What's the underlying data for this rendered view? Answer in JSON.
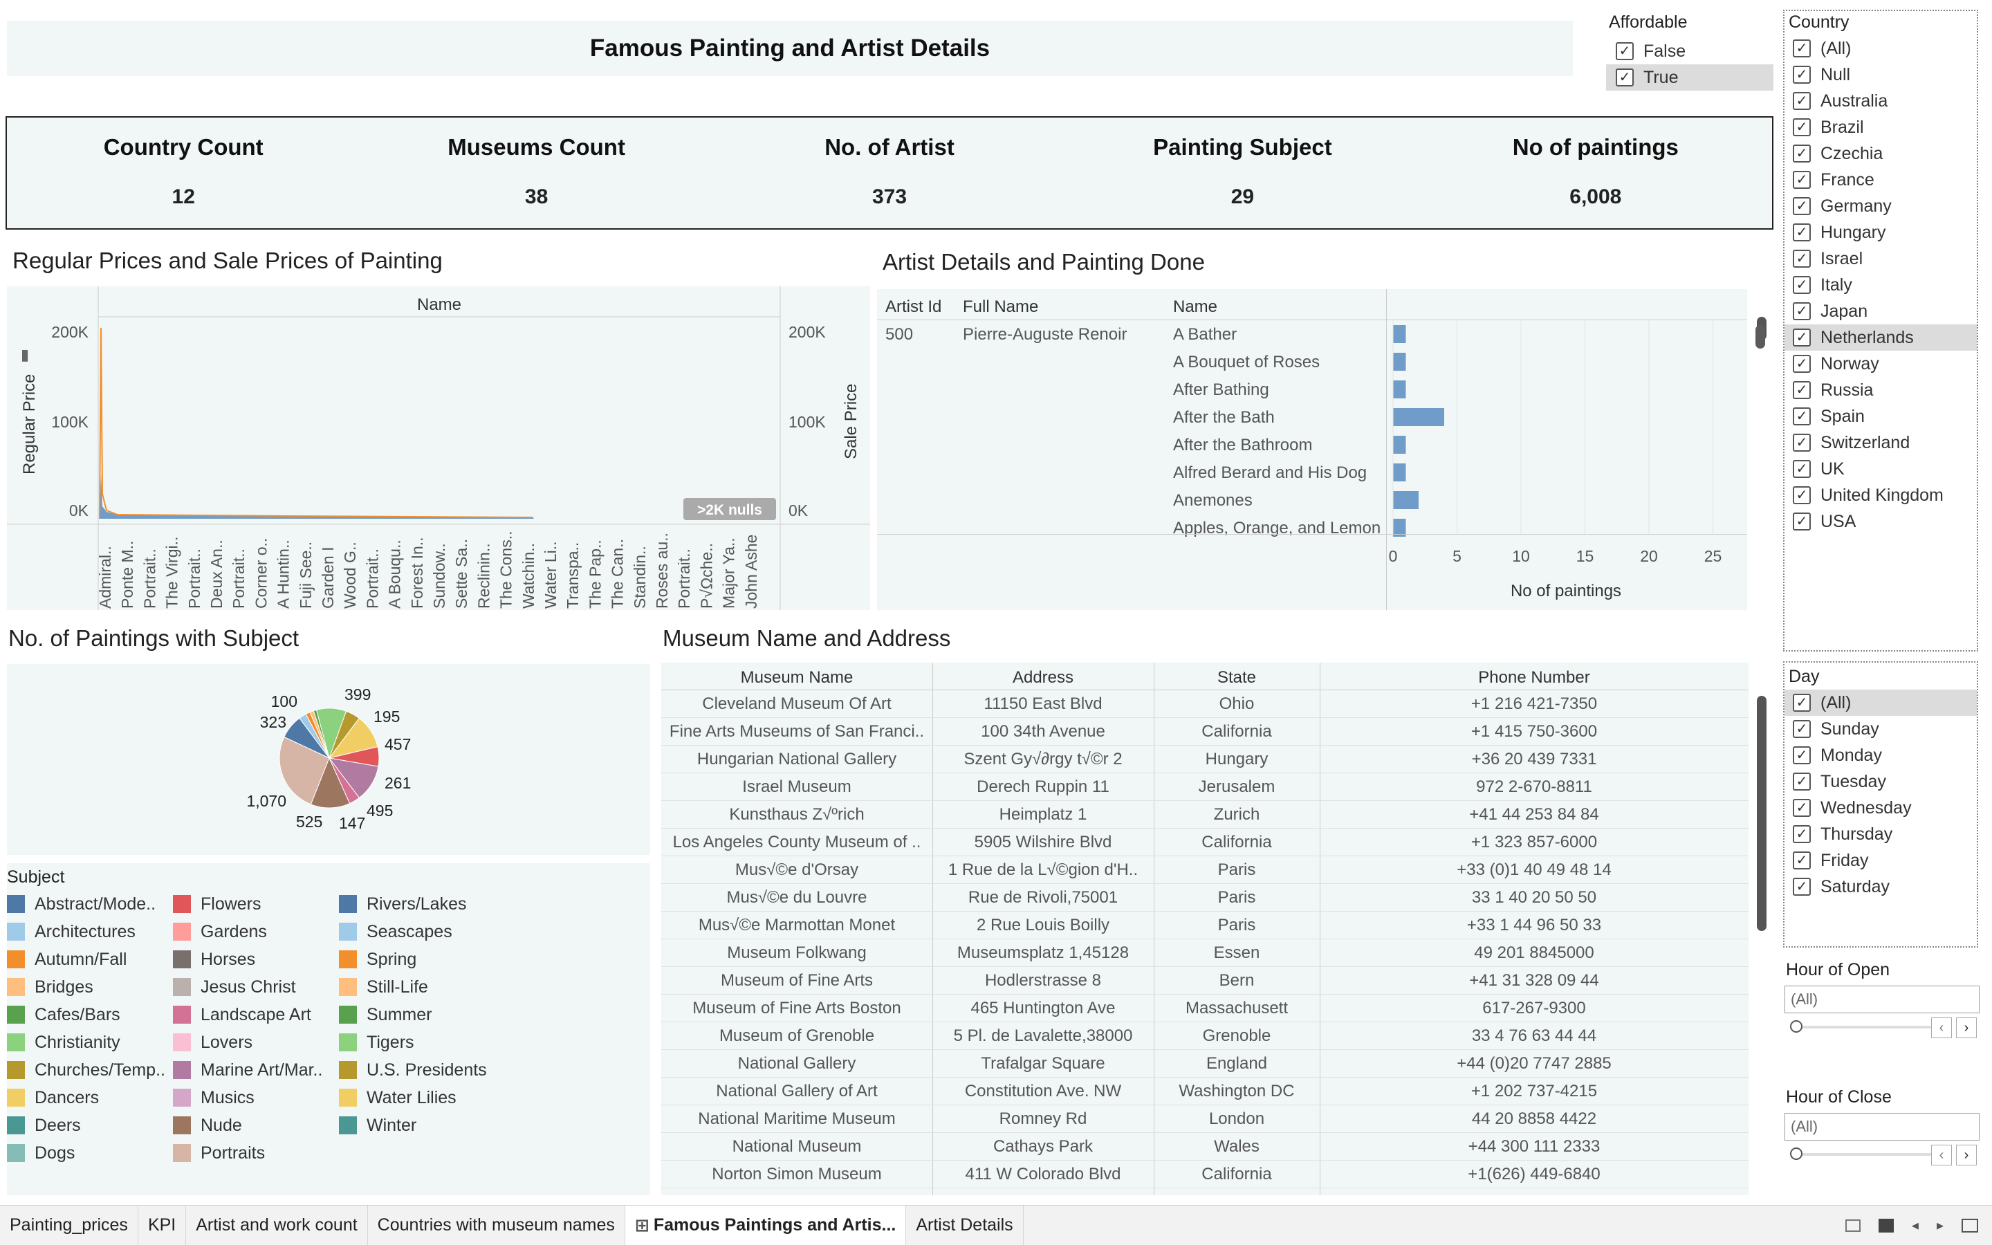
{
  "dashboard_title": "Famous Painting and Artist Details",
  "affordable_filter": {
    "title": "Affordable",
    "items": [
      {
        "label": "False",
        "checked": true
      },
      {
        "label": "True",
        "checked": true
      }
    ]
  },
  "country_filter": {
    "title": "Country",
    "items": [
      "(All)",
      "Null",
      "Australia",
      "Brazil",
      "Czechia",
      "France",
      "Germany",
      "Hungary",
      "Israel",
      "Italy",
      "Japan",
      "Netherlands",
      "Norway",
      "Russia",
      "Spain",
      "Switzerland",
      "UK",
      "United Kingdom",
      "USA"
    ]
  },
  "day_filter": {
    "title": "Day",
    "items": [
      "(All)",
      "Sunday",
      "Monday",
      "Tuesday",
      "Wednesday",
      "Thursday",
      "Friday",
      "Saturday"
    ]
  },
  "hour_open": {
    "title": "Hour of Open",
    "value": "(All)"
  },
  "hour_close": {
    "title": "Hour of Close",
    "value": "(All)"
  },
  "kpis": [
    {
      "label": "Country Count",
      "value": "12"
    },
    {
      "label": "Museums Count",
      "value": "38"
    },
    {
      "label": "No. of Artist",
      "value": "373"
    },
    {
      "label": "Painting Subject",
      "value": "29"
    },
    {
      "label": "No of paintings",
      "value": "6,008"
    }
  ],
  "price_chart": {
    "title": "Regular Prices and Sale Prices of Painting",
    "header": "Name",
    "ylabel_left": "Regular Price",
    "ylabel_right": "Sale Price",
    "nulls_badge": ">2K nulls",
    "y_ticks": [
      "200K",
      "100K",
      "0K"
    ],
    "x_labels": [
      "Admiral..",
      "Ponte M..",
      "Portrait..",
      "The Virgi..",
      "Portrait..",
      "Deux An..",
      "Portrait..",
      "Corner o..",
      "A Huntin..",
      "Fuji See..",
      "Garden I",
      "Wood G..",
      "Portrait..",
      "A Bouqu..",
      "Forest In..",
      "Sundow..",
      "Sette Sa..",
      "Reclinin..",
      "The Cons..",
      "Watchin..",
      "Water Li..",
      "Transpa..",
      "The Pap..",
      "The Can..",
      "Standin..",
      "Roses au..",
      "Portrait..",
      "P√Ωche..",
      "Major Ya..",
      "John Ashe"
    ]
  },
  "chart_data": {
    "type": "bar",
    "title": "No of paintings",
    "categories": [
      "A Bather",
      "A Bouquet of Roses",
      "After Bathing",
      "After the Bath",
      "After the Bathroom",
      "Alfred Berard and His Dog",
      "Anemones",
      "Apples, Orange, and Lemon"
    ],
    "values": [
      1,
      1,
      1,
      4,
      1,
      1,
      2,
      1
    ],
    "xlabel": "No of paintings",
    "x_ticks": [
      0,
      5,
      10,
      15,
      20,
      25
    ],
    "xlim": [
      0,
      27
    ]
  },
  "artist_table": {
    "title": "Artist Details and Painting Done",
    "headers": [
      "Artist Id",
      "Full Name",
      "Name"
    ],
    "artist_id": "500",
    "full_name": "Pierre-Auguste Renoir"
  },
  "subject_pie": {
    "title": "No. of Paintings with Subject",
    "labels": [
      "100",
      "399",
      "195",
      "457",
      "261",
      "495",
      "147",
      "525",
      "1,070",
      "323"
    ],
    "legend_title": "Subject",
    "legend": [
      {
        "name": "Abstract/Mode..",
        "color": "#4e79a7"
      },
      {
        "name": "Architectures",
        "color": "#a0cbe8"
      },
      {
        "name": "Autumn/Fall",
        "color": "#f28e2b"
      },
      {
        "name": "Bridges",
        "color": "#ffbe7d"
      },
      {
        "name": "Cafes/Bars",
        "color": "#59a14f"
      },
      {
        "name": "Christianity",
        "color": "#8cd17d"
      },
      {
        "name": "Churches/Temp..",
        "color": "#b6992d"
      },
      {
        "name": "Dancers",
        "color": "#f1ce63"
      },
      {
        "name": "Deers",
        "color": "#499894"
      },
      {
        "name": "Dogs",
        "color": "#86bcb6"
      },
      {
        "name": "Flowers",
        "color": "#e15759"
      },
      {
        "name": "Gardens",
        "color": "#ff9d9a"
      },
      {
        "name": "Horses",
        "color": "#79706e"
      },
      {
        "name": "Jesus Christ",
        "color": "#bab0ac"
      },
      {
        "name": "Landscape Art",
        "color": "#d37295"
      },
      {
        "name": "Lovers",
        "color": "#fabfd2"
      },
      {
        "name": "Marine Art/Mar..",
        "color": "#b07aa1"
      },
      {
        "name": "Musics",
        "color": "#d4a6c8"
      },
      {
        "name": "Nude",
        "color": "#9d7660"
      },
      {
        "name": "Portraits",
        "color": "#d7b5a6"
      },
      {
        "name": "Rivers/Lakes",
        "color": "#4e79a7"
      },
      {
        "name": "Seascapes",
        "color": "#a0cbe8"
      },
      {
        "name": "Spring",
        "color": "#f28e2b"
      },
      {
        "name": "Still-Life",
        "color": "#ffbe7d"
      },
      {
        "name": "Summer",
        "color": "#59a14f"
      },
      {
        "name": "Tigers",
        "color": "#8cd17d"
      },
      {
        "name": "U.S. Presidents",
        "color": "#b6992d"
      },
      {
        "name": "Water Lilies",
        "color": "#f1ce63"
      },
      {
        "name": "Winter",
        "color": "#499894"
      }
    ]
  },
  "museum_table": {
    "title": "Museum Name and Address",
    "headers": [
      "Museum Name",
      "Address",
      "State",
      "Phone Number"
    ],
    "rows": [
      [
        "Cleveland Museum Of Art",
        "11150 East Blvd",
        "Ohio",
        "+1 216 421-7350"
      ],
      [
        "Fine Arts Museums of San Franci..",
        "100 34th  Avenue",
        "California",
        "+1 415 750-3600"
      ],
      [
        "Hungarian National Gallery",
        "Szent Gy√∂rgy t√©r 2",
        "Hungary",
        "+36 20 439 7331"
      ],
      [
        "Israel Museum",
        "Derech Ruppin 11",
        "Jerusalem",
        "972 2-670-8811"
      ],
      [
        "Kunsthaus Z√ºrich",
        "Heimplatz 1",
        "Zurich",
        "+41 44 253 84 84"
      ],
      [
        "Los Angeles County Museum of ..",
        "5905 Wilshire Blvd",
        "California",
        "+1 323 857-6000"
      ],
      [
        "Mus√©e d'Orsay",
        "1 Rue de la L√©gion d'H..",
        "Paris",
        "+33 (0)1 40 49 48 14"
      ],
      [
        "Mus√©e du Louvre",
        "Rue de Rivoli,75001",
        "Paris",
        "33 1 40 20 50 50"
      ],
      [
        "Mus√©e Marmottan Monet",
        "2 Rue Louis Boilly",
        "Paris",
        "+33 1 44 96 50 33"
      ],
      [
        "Museum Folkwang",
        "Museumsplatz 1,45128",
        "Essen",
        "49 201 8845000"
      ],
      [
        "Museum of Fine Arts",
        "Hodlerstrasse 8",
        "Bern",
        "+41 31 328 09 44"
      ],
      [
        "Museum of Fine Arts Boston",
        "465 Huntington Ave",
        "Massachusett",
        "617-267-9300"
      ],
      [
        "Museum of Grenoble",
        "5 Pl. de Lavalette,38000",
        "Grenoble",
        "33 4 76 63 44 44"
      ],
      [
        "National Gallery",
        "Trafalgar Square",
        "England",
        "+44 (0)20 7747 2885"
      ],
      [
        "National Gallery of Art",
        "Constitution Ave. NW",
        "Washington DC",
        "+1 202 737-4215"
      ],
      [
        "National Maritime Museum",
        "Romney Rd",
        "London",
        "44 20 8858 4422"
      ],
      [
        "National Museum",
        "Cathays Park",
        "Wales",
        "+44 300 111 2333"
      ],
      [
        "Norton Simon Museum",
        "411 W Colorado Blvd",
        "California",
        "+1(626) 449-6840"
      ]
    ]
  },
  "tabs": [
    "Painting_prices",
    "KPI",
    "Artist and work count",
    "Countries with museum names",
    "Famous Paintings and Artis...",
    "Artist Details"
  ],
  "colors": {
    "panel_bg": "#f0f7f6",
    "bar_blue": "#6f9cc9",
    "accent_orange": "#f28e2b"
  }
}
